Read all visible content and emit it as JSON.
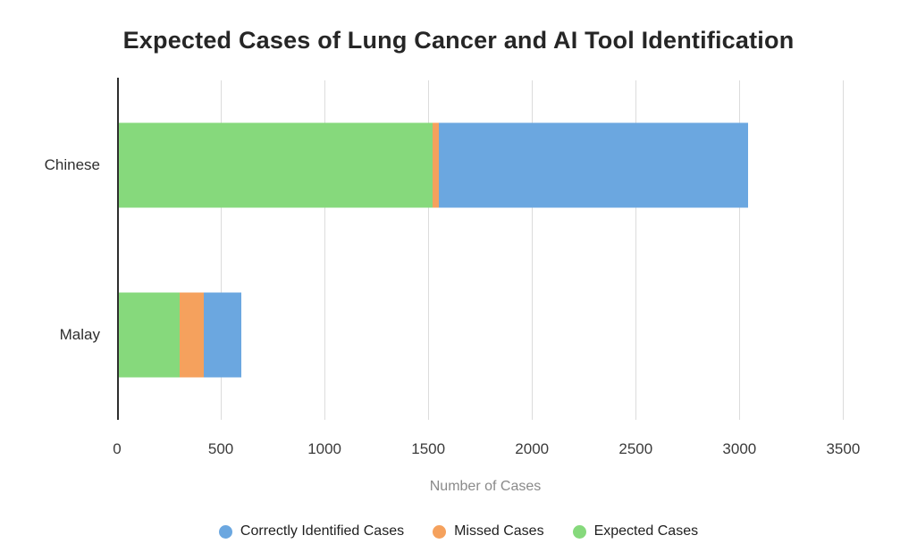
{
  "chart_data": {
    "type": "bar",
    "orientation": "horizontal",
    "stacked": true,
    "title": "Expected Cases of Lung Cancer and AI Tool Identification",
    "xlabel": "Number of Cases",
    "ylabel": "",
    "xlim": [
      0,
      3550
    ],
    "xticks": [
      0,
      500,
      1000,
      1500,
      2000,
      2500,
      3000,
      3500
    ],
    "grid": true,
    "legend_position": "bottom",
    "categories": [
      "Chinese",
      "Malay"
    ],
    "series": [
      {
        "name": "Correctly Identified Cases",
        "color": "#6ba7e0",
        "values": [
          1490,
          180
        ]
      },
      {
        "name": "Missed Cases",
        "color": "#f5a15d",
        "values": [
          30,
          120
        ]
      },
      {
        "name": "Expected Cases",
        "color": "#86d97c",
        "values": [
          1520,
          300
        ]
      }
    ],
    "stack_order": [
      "Expected Cases",
      "Missed Cases",
      "Correctly Identified Cases"
    ]
  }
}
